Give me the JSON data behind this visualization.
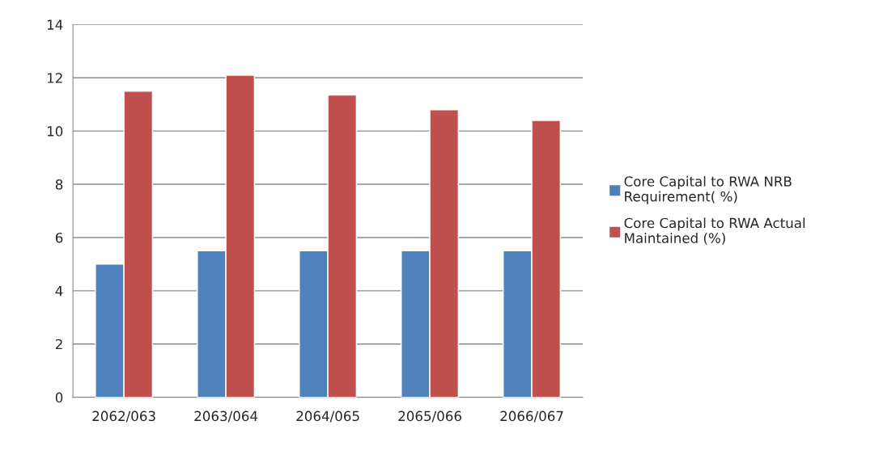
{
  "chart_data": {
    "type": "bar",
    "categories": [
      "2062/063",
      "2063/064",
      "2064/065",
      "2065/066",
      "2066/067"
    ],
    "series": [
      {
        "name": "Core Capital to RWA NRB\nRequirement( %)",
        "color": "#4f81bd",
        "values": [
          5,
          5.5,
          5.5,
          5.5,
          5.5
        ]
      },
      {
        "name": "Core Capital to RWA Actual\nMaintained (%)",
        "color": "#c0504d",
        "values": [
          11.5,
          12.1,
          11.35,
          10.8,
          10.4
        ]
      }
    ],
    "ylim": [
      0,
      14
    ],
    "yticks": [
      0,
      2,
      4,
      6,
      8,
      10,
      12,
      14
    ],
    "grid": "y",
    "legend": "right"
  }
}
